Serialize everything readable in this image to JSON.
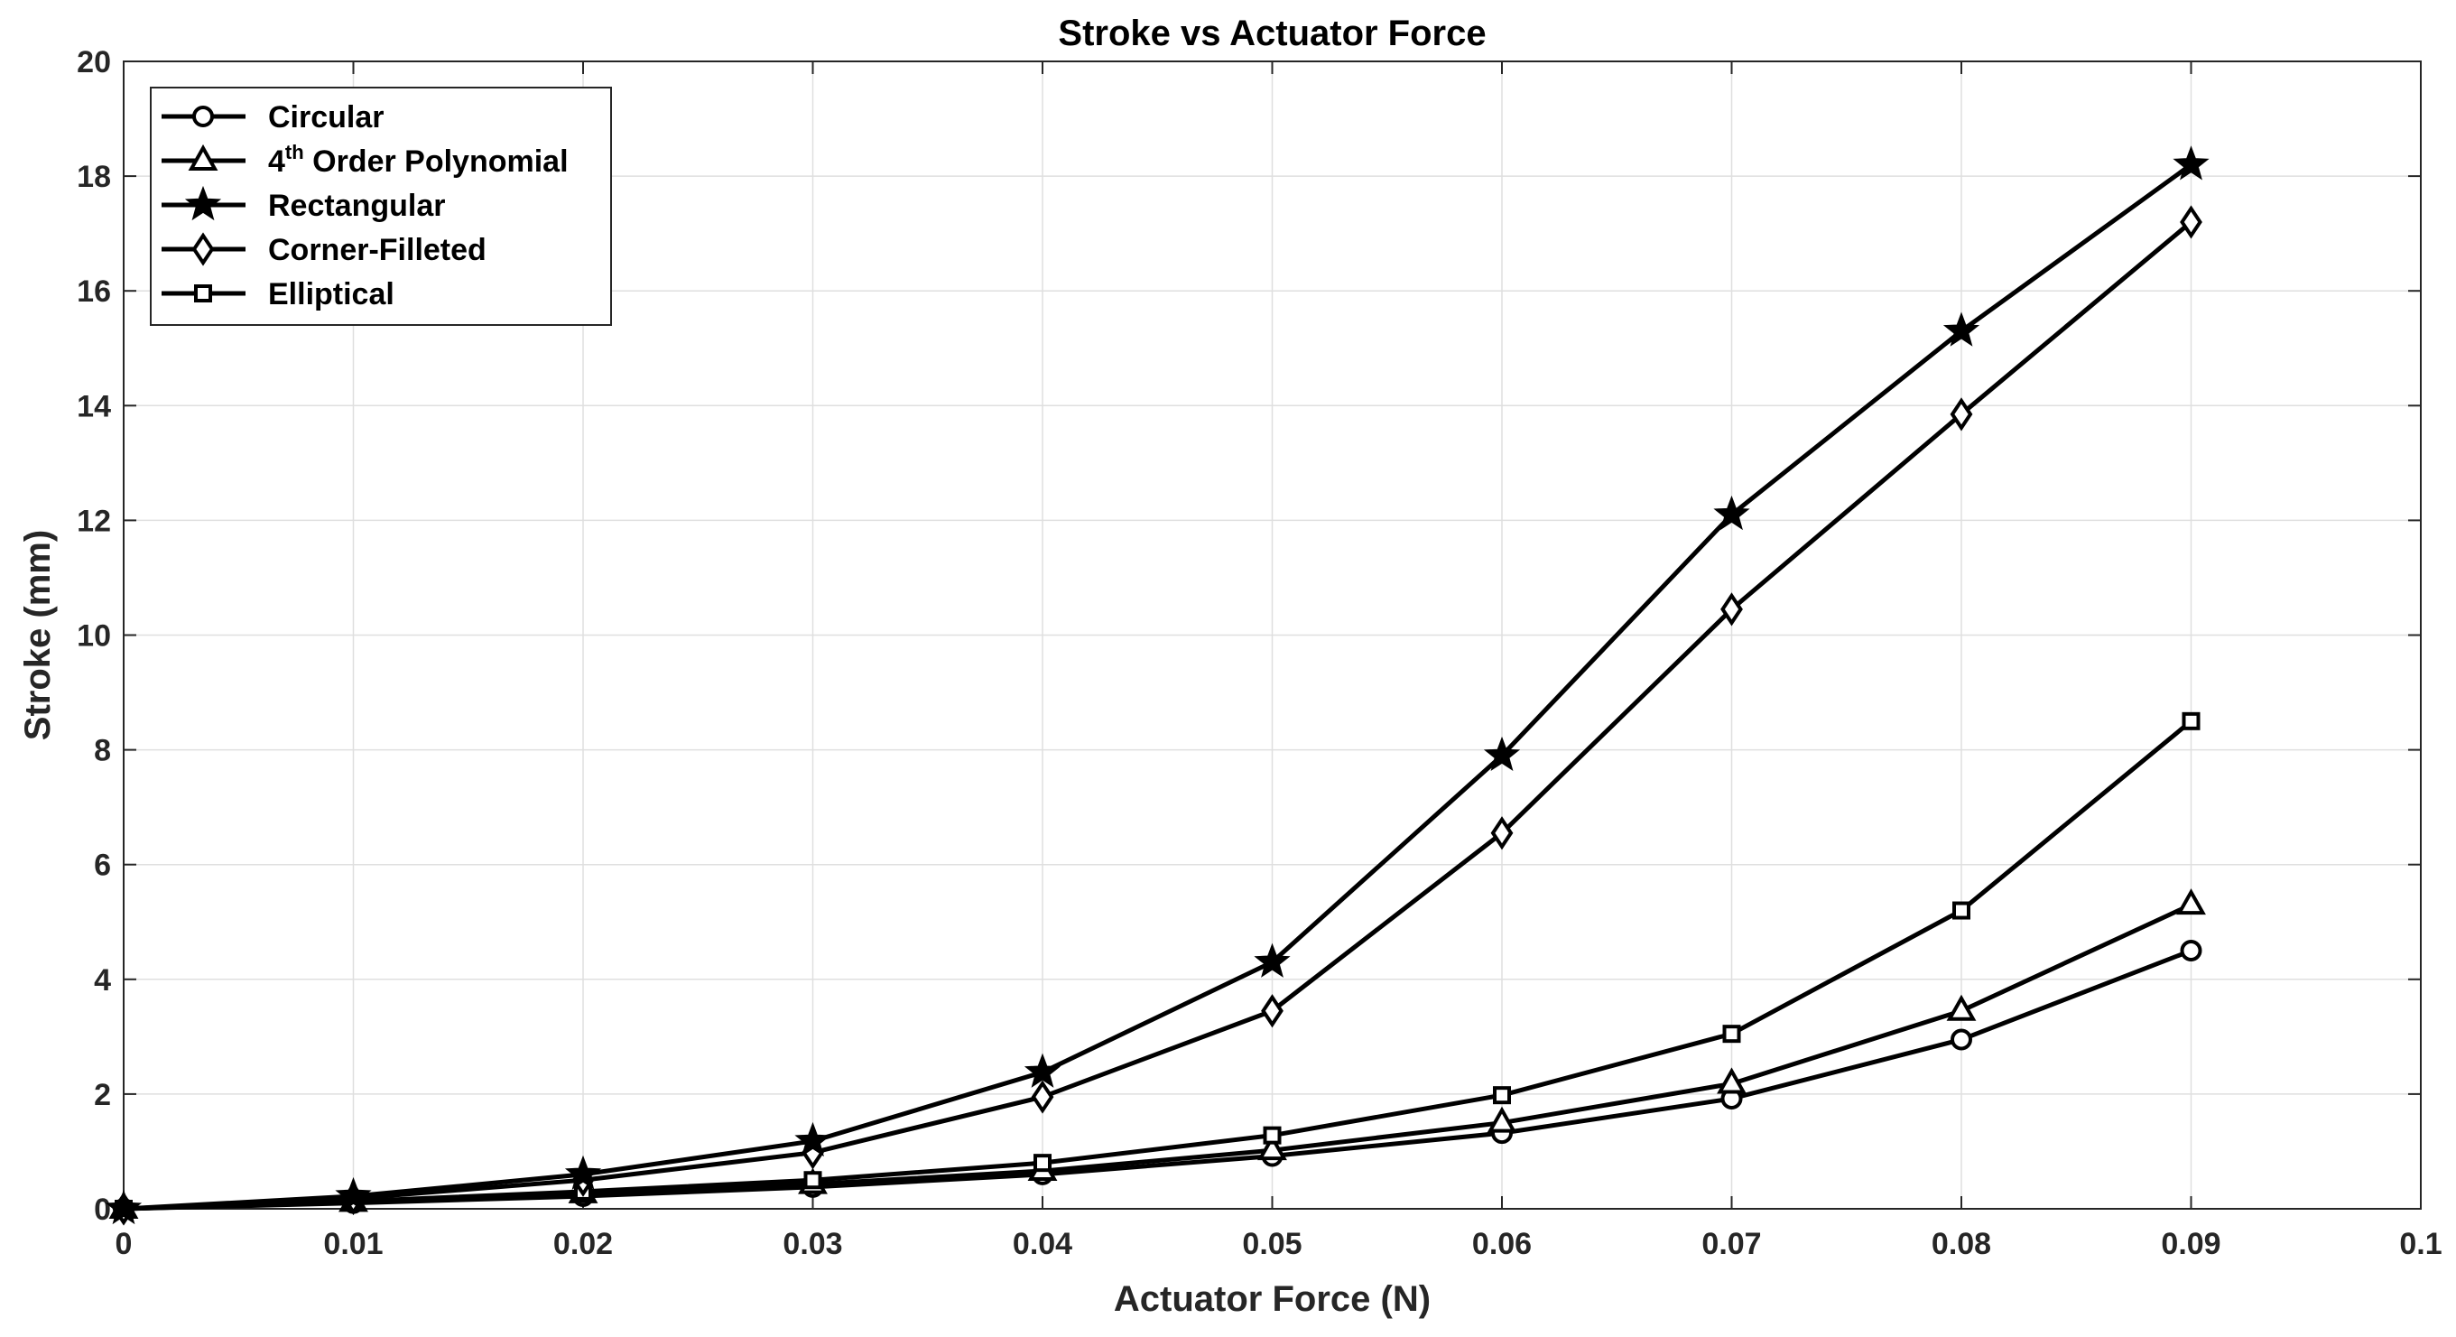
{
  "chart_data": {
    "type": "line",
    "title": "Stroke vs Actuator Force",
    "xlabel": "Actuator Force (N)",
    "ylabel": "Stroke (mm)",
    "xlim": [
      0,
      0.1
    ],
    "ylim": [
      0,
      20
    ],
    "x_ticks": [
      "0",
      "0.01",
      "0.02",
      "0.03",
      "0.04",
      "0.05",
      "0.06",
      "0.07",
      "0.08",
      "0.09",
      "0.1"
    ],
    "y_ticks": [
      "0",
      "2",
      "4",
      "6",
      "8",
      "10",
      "12",
      "14",
      "16",
      "18",
      "20"
    ],
    "grid": true,
    "legend_position": "top-left",
    "line_color": "#000000",
    "x": [
      0,
      0.01,
      0.02,
      0.03,
      0.04,
      0.05,
      0.06,
      0.07,
      0.08,
      0.09
    ],
    "series": [
      {
        "name": "Circular",
        "marker": "circle",
        "values": [
          0,
          0.1,
          0.22,
          0.38,
          0.6,
          0.92,
          1.32,
          1.92,
          2.95,
          4.5
        ]
      },
      {
        "name": "4th Order Polynomial",
        "name_base": "4",
        "name_sup": "th",
        "name_rest": " Order Polynomial",
        "marker": "triangle",
        "values": [
          0,
          0.12,
          0.27,
          0.43,
          0.66,
          1.02,
          1.5,
          2.18,
          3.45,
          5.3
        ]
      },
      {
        "name": "Rectangular",
        "marker": "star",
        "values": [
          0,
          0.22,
          0.6,
          1.18,
          2.38,
          4.3,
          7.9,
          12.1,
          15.3,
          18.2
        ]
      },
      {
        "name": "Corner-Filleted",
        "marker": "diamond",
        "values": [
          0,
          0.18,
          0.5,
          0.98,
          1.95,
          3.45,
          6.55,
          10.45,
          13.85,
          17.2
        ]
      },
      {
        "name": "Elliptical",
        "marker": "square",
        "values": [
          0,
          0.13,
          0.3,
          0.5,
          0.8,
          1.28,
          1.98,
          3.05,
          5.2,
          8.5
        ]
      }
    ]
  }
}
